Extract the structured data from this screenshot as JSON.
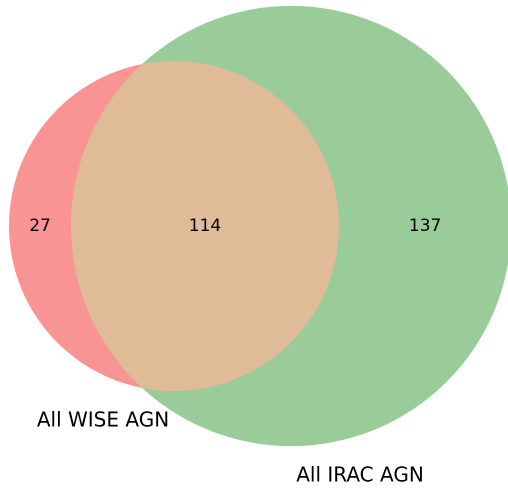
{
  "chart_data": {
    "type": "venn",
    "sets": [
      {
        "name": "All WISE AGN",
        "color": "#f99494"
      },
      {
        "name": "All IRAC AGN",
        "color": "#99cc99"
      }
    ],
    "overlap_color": "#dfbb98",
    "regions": [
      "10",
      "11",
      "01"
    ],
    "values": [
      27,
      114,
      137
    ]
  }
}
